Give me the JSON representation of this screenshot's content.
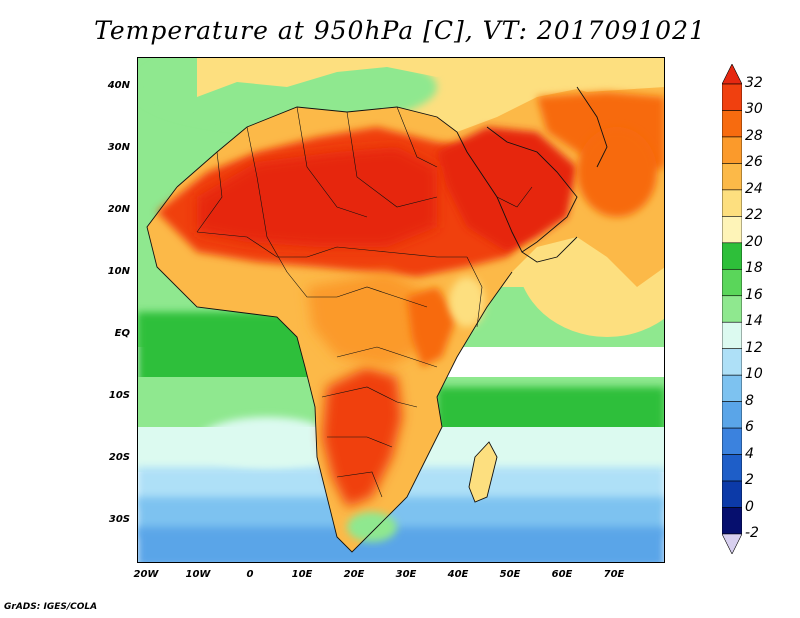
{
  "title": "Temperature at 950hPa [C], VT: 2017091021",
  "credit": "GrADS: IGES/COLA",
  "lat_labels": [
    "40N",
    "30N",
    "20N",
    "10N",
    "EQ",
    "10S",
    "20S",
    "30S"
  ],
  "lon_labels": [
    "20W",
    "10W",
    "0",
    "10E",
    "20E",
    "30E",
    "40E",
    "50E",
    "60E",
    "70E"
  ],
  "colorbar": {
    "tick_labels": [
      "32",
      "30",
      "28",
      "26",
      "24",
      "22",
      "20",
      "18",
      "16",
      "14",
      "12",
      "10",
      "8",
      "6",
      "4",
      "2",
      "0",
      "-2"
    ],
    "colors": [
      "#e62811",
      "#f0400f",
      "#f76b0f",
      "#fb9a2b",
      "#fcb948",
      "#fddf7f",
      "#fef4b8",
      "#2ebf3a",
      "#5ad65a",
      "#8fe88f",
      "#dcfaf0",
      "#aee0f7",
      "#7dc2f0",
      "#5aa5e8",
      "#3b82de",
      "#1e5ec8",
      "#0c3aa8",
      "#060f6e",
      "#d8d0f0"
    ]
  },
  "map": {
    "region": "Africa and Middle East",
    "lon_range": [
      -22,
      80
    ],
    "lat_range": [
      -38,
      45
    ],
    "variable": "Temperature at 950hPa",
    "units": "C"
  }
}
